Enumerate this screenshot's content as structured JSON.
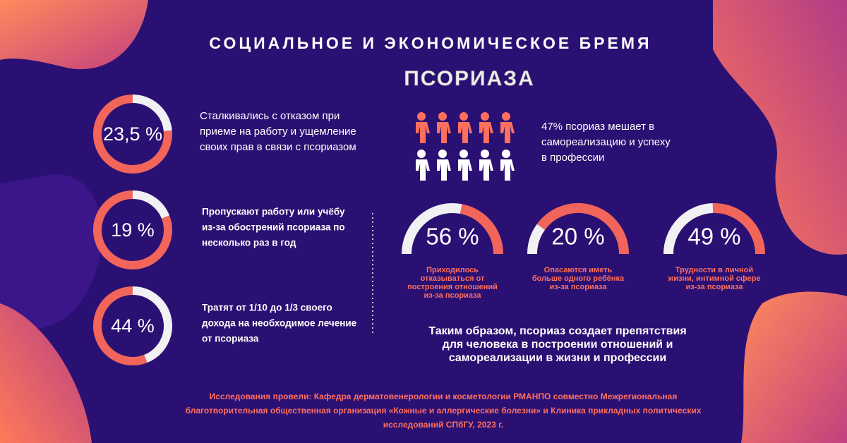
{
  "header": {
    "title": "СОЦИАЛЬНОЕ И ЭКОНОМИЧЕСКОЕ БРЕМЯ",
    "subtitle": "ПСОРИАЗА"
  },
  "left_stats": [
    {
      "value": 23.5,
      "label": "23,5 %",
      "text": [
        "Сталкивались с отказом при",
        "приеме на работу и ущемление",
        "своих прав в связи с псориазом"
      ]
    },
    {
      "value": 19,
      "label": "19 %",
      "text": [
        "Пропускают работу или учёбу",
        "из-за обострений псориаза по",
        "несколько раз в год"
      ]
    },
    {
      "value": 44,
      "label": "44 %",
      "text": [
        "Тратят от 1/10 до 1/3 своего",
        "дохода на необходимое лечение",
        "от псориаза"
      ]
    }
  ],
  "people_note": [
    "47% псориаз мешает в",
    "самореализацию и успеху",
    "в профессии"
  ],
  "gauges": [
    {
      "value": 56,
      "label": "56 %",
      "text": [
        "Приходилось",
        "отказываться от",
        "построения отношений",
        "из-за псориаза"
      ]
    },
    {
      "value": 20,
      "label": "20 %",
      "text": [
        "Опасаются иметь",
        "больше одного ребёнка",
        "из-за псориаза"
      ]
    },
    {
      "value": 49,
      "label": "49 %",
      "text": [
        "Трудности в личной",
        "жизни, интимной сфере",
        "из-за псориаза"
      ]
    }
  ],
  "conclusion": [
    "Таким образом, псориаз создает препятствия",
    "для человека в построении  отношений и",
    "самореализации в жизни и профессии"
  ],
  "footnote": [
    "Исследования провели: Кафедра дерматовенерологии и косметологии РМАНПО совместно Межрегиональная",
    "благотворительная общественная организация «Кожные и аллергические болезни» и Клиника прикладных политических",
    "исследований СПбГУ, 2023 г."
  ]
}
